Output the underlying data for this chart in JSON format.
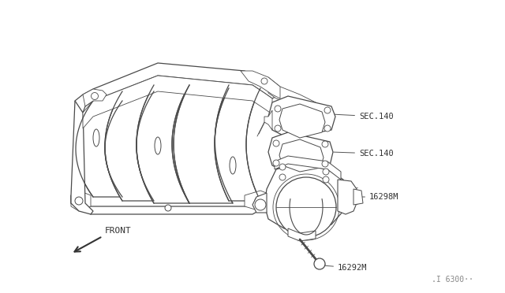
{
  "bg_color": "#ffffff",
  "line_color": "#4a4a4a",
  "fig_width": 6.4,
  "fig_height": 3.72,
  "dpi": 100,
  "labels": {
    "SEC140_top": "SEC.140",
    "SEC140_mid": "SEC.140",
    "part_16298M": "16298M",
    "part_16292M": "16292M",
    "front_label": "FRONT",
    "doc_num": ".I 6300··"
  }
}
